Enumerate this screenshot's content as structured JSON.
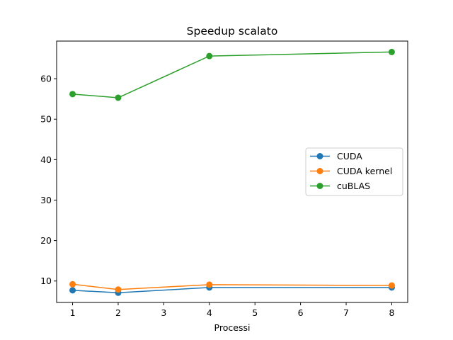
{
  "chart_data": {
    "type": "line",
    "title": "Speedup scalato",
    "xlabel": "Processi",
    "ylabel": "",
    "x": [
      1,
      2,
      4,
      8
    ],
    "xticks": [
      1,
      2,
      3,
      4,
      5,
      6,
      7,
      8
    ],
    "yticks": [
      10,
      20,
      30,
      40,
      50,
      60
    ],
    "xlim": [
      0.65,
      8.35
    ],
    "ylim": [
      4.7,
      69.3
    ],
    "grid": false,
    "legend_position": "center-right",
    "series": [
      {
        "name": "CUDA",
        "color": "#1f77b4",
        "marker": "circle",
        "values": [
          7.7,
          7.1,
          8.4,
          8.4
        ]
      },
      {
        "name": "CUDA kernel",
        "color": "#ff7f0e",
        "marker": "circle",
        "values": [
          9.2,
          7.9,
          9.1,
          8.9
        ]
      },
      {
        "name": "cuBLAS",
        "color": "#2ca02c",
        "marker": "circle",
        "values": [
          56.2,
          55.3,
          65.6,
          66.6
        ]
      }
    ]
  }
}
